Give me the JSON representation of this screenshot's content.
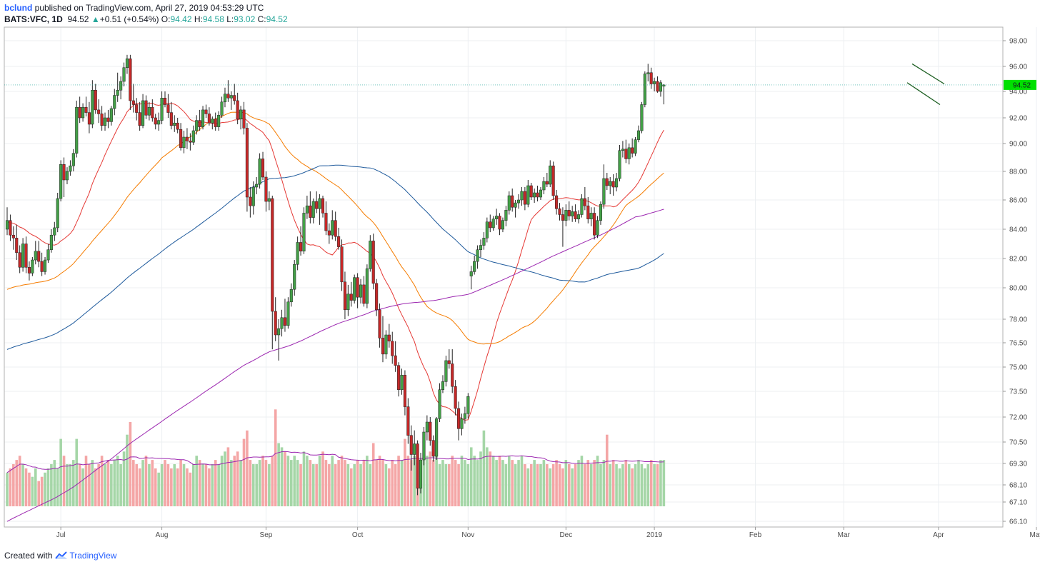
{
  "header": {
    "user": "bclund",
    "published": " published on TradingView.com, April 27, 2019 04:53:29 UTC",
    "symbol": "BATS:VFC, 1D",
    "last": "94.52",
    "change": "+0.51 (+0.54%)",
    "o_label": "O:",
    "o_value": "94.42",
    "h_label": "H:",
    "h_value": "94.58",
    "l_label": "L:",
    "l_value": "93.02",
    "c_label": "C:",
    "c_value": "94.52"
  },
  "footer": {
    "created_with": "Created with",
    "brand": "TradingView"
  },
  "colors": {
    "up": "#43a047",
    "down": "#c62828",
    "ma20": "#e53935",
    "ma50": "#f57c00",
    "ma100": "#1e5a9c",
    "ma200": "#9c27b0",
    "vol_up": "#a5d6a7",
    "vol_down": "#f4a6a6",
    "vol_ma": "#9c27b0",
    "flag": "#1b5e20",
    "last_tag": "#00e000"
  },
  "chart_data": {
    "type": "candlestick",
    "y_axis": {
      "ticks": [
        66.1,
        67.1,
        68.1,
        69.3,
        70.5,
        72.0,
        73.5,
        75.0,
        76.5,
        78.0,
        80.0,
        82.0,
        84.0,
        86.0,
        88.0,
        90.0,
        92.0,
        94.0,
        96.0,
        98.0
      ],
      "tick_labels": [
        "66.10",
        "67.10",
        "68.10",
        "69.30",
        "70.50",
        "72.00",
        "73.50",
        "75.00",
        "76.50",
        "78.00",
        "80.00",
        "82.00",
        "84.00",
        "86.00",
        "88.00",
        "90.00",
        "92.00",
        "94.00",
        "96.00",
        "98.00"
      ]
    },
    "x_axis": {
      "labels": [
        "Jul",
        "Aug",
        "Sep",
        "Oct",
        "Nov",
        "Dec",
        "2019",
        "Feb",
        "Mar",
        "Apr",
        "May"
      ],
      "label_bar_index": [
        17,
        49,
        82,
        111,
        146,
        177,
        205,
        237,
        265,
        295,
        326
      ]
    },
    "last_price": "94.52",
    "candles_ohlc": [
      [
        84.0,
        85.5,
        83.6,
        84.6
      ],
      [
        84.6,
        85.0,
        83.2,
        83.6
      ],
      [
        83.6,
        84.2,
        82.6,
        83.4
      ],
      [
        83.4,
        84.3,
        81.9,
        82.4
      ],
      [
        82.4,
        82.9,
        81.0,
        81.4
      ],
      [
        81.4,
        83.4,
        81.1,
        83.0
      ],
      [
        83.0,
        83.5,
        81.0,
        81.4
      ],
      [
        81.4,
        81.8,
        80.5,
        81.0
      ],
      [
        81.0,
        82.1,
        80.8,
        81.9
      ],
      [
        81.9,
        83.2,
        81.6,
        82.5
      ],
      [
        82.5,
        83.2,
        81.4,
        81.8
      ],
      [
        81.8,
        82.4,
        80.8,
        81.1
      ],
      [
        81.1,
        82.1,
        80.9,
        81.9
      ],
      [
        81.9,
        83.0,
        81.7,
        82.6
      ],
      [
        82.6,
        84.0,
        82.4,
        83.6
      ],
      [
        83.6,
        84.5,
        83.2,
        84.1
      ],
      [
        84.1,
        86.5,
        83.8,
        86.1
      ],
      [
        86.1,
        88.8,
        85.9,
        88.5
      ],
      [
        88.5,
        89.0,
        86.2,
        87.4
      ],
      [
        87.4,
        88.3,
        87.1,
        88.0
      ],
      [
        88.0,
        88.8,
        87.7,
        88.4
      ],
      [
        88.4,
        89.6,
        88.0,
        89.3
      ],
      [
        89.3,
        93.3,
        89.0,
        92.8
      ],
      [
        92.8,
        93.6,
        91.6,
        92.0
      ],
      [
        92.0,
        93.1,
        91.7,
        92.8
      ],
      [
        92.8,
        93.6,
        92.1,
        92.4
      ],
      [
        92.4,
        93.2,
        90.8,
        91.5
      ],
      [
        91.5,
        94.9,
        91.2,
        94.1
      ],
      [
        94.1,
        94.6,
        92.3,
        92.6
      ],
      [
        92.6,
        93.4,
        91.6,
        92.3
      ],
      [
        92.3,
        92.9,
        91.0,
        91.4
      ],
      [
        91.4,
        92.4,
        91.0,
        92.0
      ],
      [
        92.0,
        92.6,
        91.2,
        91.7
      ],
      [
        91.7,
        92.9,
        91.4,
        92.7
      ],
      [
        92.7,
        94.2,
        92.2,
        93.7
      ],
      [
        93.7,
        95.5,
        93.2,
        94.1
      ],
      [
        94.1,
        95.2,
        93.4,
        94.8
      ],
      [
        94.8,
        96.3,
        94.4,
        95.9
      ],
      [
        95.9,
        96.9,
        95.4,
        96.6
      ],
      [
        96.6,
        96.9,
        92.6,
        93.3
      ],
      [
        93.3,
        94.6,
        92.4,
        93.0
      ],
      [
        93.0,
        93.5,
        91.8,
        92.4
      ],
      [
        92.4,
        93.2,
        91.0,
        91.4
      ],
      [
        91.4,
        93.8,
        91.2,
        93.3
      ],
      [
        93.3,
        93.7,
        91.9,
        92.2
      ],
      [
        92.2,
        93.2,
        91.8,
        92.8
      ],
      [
        92.8,
        93.4,
        91.7,
        92.0
      ],
      [
        92.0,
        92.3,
        91.1,
        91.5
      ],
      [
        91.5,
        92.4,
        91.0,
        91.8
      ],
      [
        91.8,
        94.0,
        91.5,
        93.5
      ],
      [
        93.5,
        94.0,
        92.8,
        93.0
      ],
      [
        93.0,
        93.8,
        92.0,
        92.4
      ],
      [
        92.4,
        93.2,
        91.1,
        91.4
      ],
      [
        91.4,
        92.2,
        90.9,
        91.6
      ],
      [
        91.6,
        92.0,
        90.8,
        91.1
      ],
      [
        91.1,
        91.6,
        89.5,
        89.7
      ],
      [
        89.7,
        91.0,
        89.3,
        90.5
      ],
      [
        90.5,
        91.2,
        89.6,
        90.2
      ],
      [
        90.2,
        90.8,
        89.5,
        90.1
      ],
      [
        90.1,
        91.4,
        89.9,
        91.0
      ],
      [
        91.0,
        92.2,
        90.7,
        91.8
      ],
      [
        91.8,
        92.6,
        91.0,
        91.3
      ],
      [
        91.3,
        92.9,
        91.1,
        92.6
      ],
      [
        92.6,
        93.0,
        92.0,
        92.3
      ],
      [
        92.3,
        92.8,
        91.4,
        91.6
      ],
      [
        91.6,
        92.1,
        91.1,
        91.9
      ],
      [
        91.9,
        92.4,
        91.0,
        91.3
      ],
      [
        91.3,
        92.5,
        91.0,
        92.2
      ],
      [
        92.2,
        93.6,
        92.0,
        93.2
      ],
      [
        93.2,
        94.3,
        92.8,
        93.8
      ],
      [
        93.8,
        94.9,
        93.2,
        93.5
      ],
      [
        93.5,
        94.0,
        92.6,
        93.7
      ],
      [
        93.7,
        94.6,
        93.0,
        93.3
      ],
      [
        93.3,
        93.9,
        91.5,
        91.9
      ],
      [
        91.9,
        92.9,
        91.1,
        92.6
      ],
      [
        92.6,
        93.2,
        90.7,
        91.2
      ],
      [
        91.2,
        91.6,
        85.2,
        86.2
      ],
      [
        86.2,
        86.9,
        84.8,
        85.6
      ],
      [
        85.6,
        87.3,
        85.0,
        86.9
      ],
      [
        86.9,
        87.6,
        86.4,
        87.1
      ],
      [
        87.1,
        89.3,
        86.8,
        88.9
      ],
      [
        88.9,
        89.4,
        87.4,
        87.6
      ],
      [
        87.6,
        88.0,
        85.2,
        85.9
      ],
      [
        85.9,
        86.6,
        85.3,
        86.1
      ],
      [
        86.1,
        86.3,
        76.1,
        78.5
      ],
      [
        78.5,
        79.4,
        76.6,
        77.0
      ],
      [
        77.0,
        78.0,
        75.4,
        77.4
      ],
      [
        77.4,
        78.6,
        76.9,
        78.1
      ],
      [
        78.1,
        79.3,
        77.2,
        77.6
      ],
      [
        77.6,
        79.4,
        77.4,
        79.1
      ],
      [
        79.1,
        80.3,
        78.8,
        79.9
      ],
      [
        79.9,
        81.9,
        79.5,
        81.6
      ],
      [
        81.6,
        83.5,
        81.2,
        83.1
      ],
      [
        83.1,
        84.2,
        82.2,
        82.5
      ],
      [
        82.5,
        85.5,
        82.3,
        85.1
      ],
      [
        85.1,
        86.3,
        84.7,
        85.6
      ],
      [
        85.6,
        86.6,
        84.4,
        84.8
      ],
      [
        84.8,
        86.1,
        84.4,
        85.9
      ],
      [
        85.9,
        86.6,
        85.1,
        85.4
      ],
      [
        85.4,
        86.4,
        84.3,
        86.1
      ],
      [
        86.1,
        86.3,
        84.8,
        85.1
      ],
      [
        85.1,
        85.9,
        83.6,
        83.9
      ],
      [
        83.9,
        84.4,
        83.0,
        83.6
      ],
      [
        83.6,
        85.3,
        83.3,
        84.6
      ],
      [
        84.6,
        85.2,
        83.2,
        83.5
      ],
      [
        83.5,
        84.1,
        82.6,
        82.8
      ],
      [
        82.8,
        83.3,
        79.8,
        80.4
      ],
      [
        80.4,
        81.1,
        78.0,
        78.6
      ],
      [
        78.6,
        80.2,
        78.2,
        79.6
      ],
      [
        79.6,
        80.4,
        78.8,
        79.2
      ],
      [
        79.2,
        80.9,
        79.0,
        80.7
      ],
      [
        80.7,
        81.0,
        78.7,
        79.4
      ],
      [
        79.4,
        80.6,
        79.0,
        80.2
      ],
      [
        80.2,
        80.8,
        78.8,
        79.0
      ],
      [
        79.0,
        81.6,
        78.7,
        81.3
      ],
      [
        81.3,
        83.6,
        81.1,
        83.2
      ],
      [
        83.2,
        83.7,
        79.9,
        80.3
      ],
      [
        80.3,
        80.6,
        78.2,
        78.6
      ],
      [
        78.6,
        79.0,
        76.2,
        76.8
      ],
      [
        76.8,
        78.2,
        75.3,
        75.8
      ],
      [
        75.8,
        77.3,
        75.5,
        77.0
      ],
      [
        77.0,
        77.7,
        76.2,
        76.6
      ],
      [
        76.6,
        77.2,
        75.2,
        75.7
      ],
      [
        75.7,
        76.6,
        74.7,
        75.1
      ],
      [
        75.1,
        75.3,
        73.2,
        73.6
      ],
      [
        73.6,
        74.9,
        73.3,
        74.5
      ],
      [
        74.5,
        74.8,
        72.1,
        72.6
      ],
      [
        72.6,
        73.1,
        70.4,
        70.9
      ],
      [
        70.9,
        71.5,
        68.9,
        69.8
      ],
      [
        69.8,
        71.2,
        69.2,
        70.4
      ],
      [
        70.4,
        70.6,
        67.5,
        67.9
      ],
      [
        67.9,
        69.9,
        67.6,
        69.5
      ],
      [
        69.5,
        71.4,
        69.2,
        71.1
      ],
      [
        71.1,
        72.1,
        70.6,
        71.7
      ],
      [
        71.7,
        72.0,
        70.3,
        70.6
      ],
      [
        70.6,
        70.9,
        69.4,
        69.7
      ],
      [
        69.7,
        72.0,
        69.5,
        71.9
      ],
      [
        71.9,
        74.0,
        71.7,
        73.6
      ],
      [
        73.6,
        74.5,
        73.4,
        74.1
      ],
      [
        74.1,
        75.7,
        73.8,
        75.4
      ],
      [
        75.4,
        76.1,
        74.9,
        75.2
      ],
      [
        75.2,
        76.1,
        73.4,
        73.8
      ],
      [
        73.8,
        74.2,
        72.1,
        72.5
      ],
      [
        72.5,
        72.9,
        70.6,
        71.3
      ],
      [
        71.3,
        72.2,
        70.9,
        71.9
      ],
      [
        71.9,
        72.6,
        71.6,
        72.2
      ],
      [
        72.2,
        73.4,
        71.9,
        73.2
      ],
      [
        80.8,
        81.5,
        79.9,
        81.1
      ],
      [
        81.1,
        82.2,
        80.9,
        81.8
      ],
      [
        81.8,
        82.9,
        81.3,
        82.6
      ],
      [
        82.6,
        83.3,
        82.1,
        82.9
      ],
      [
        82.9,
        83.8,
        82.6,
        83.4
      ],
      [
        83.4,
        84.8,
        83.1,
        84.5
      ],
      [
        84.5,
        85.0,
        83.8,
        84.1
      ],
      [
        84.1,
        84.9,
        83.9,
        84.7
      ],
      [
        84.7,
        85.4,
        84.3,
        84.9
      ],
      [
        84.9,
        85.1,
        83.6,
        84.0
      ],
      [
        84.0,
        84.8,
        83.8,
        84.6
      ],
      [
        84.6,
        85.6,
        84.2,
        85.3
      ],
      [
        85.3,
        86.6,
        85.0,
        86.3
      ],
      [
        86.3,
        86.8,
        85.2,
        85.5
      ],
      [
        85.5,
        86.0,
        84.8,
        85.8
      ],
      [
        85.8,
        86.4,
        85.4,
        86.0
      ],
      [
        86.0,
        86.9,
        85.6,
        86.6
      ],
      [
        86.6,
        86.9,
        85.3,
        85.7
      ],
      [
        85.7,
        87.4,
        85.5,
        87.0
      ],
      [
        87.0,
        87.2,
        86.0,
        86.2
      ],
      [
        86.2,
        86.8,
        85.8,
        86.5
      ],
      [
        86.5,
        87.0,
        85.9,
        86.2
      ],
      [
        86.2,
        86.9,
        86.0,
        86.7
      ],
      [
        86.7,
        87.6,
        86.4,
        87.3
      ],
      [
        87.3,
        87.9,
        86.9,
        87.1
      ],
      [
        87.1,
        88.8,
        86.9,
        88.4
      ],
      [
        88.4,
        88.7,
        86.0,
        86.3
      ],
      [
        86.3,
        86.7,
        85.0,
        85.4
      ],
      [
        85.4,
        85.8,
        84.6,
        85.0
      ],
      [
        85.0,
        85.5,
        82.8,
        84.6
      ],
      [
        84.6,
        85.7,
        84.2,
        85.3
      ],
      [
        85.3,
        85.9,
        84.6,
        84.9
      ],
      [
        84.9,
        85.6,
        84.5,
        85.2
      ],
      [
        85.2,
        85.7,
        84.5,
        84.7
      ],
      [
        84.7,
        85.3,
        84.4,
        85.0
      ],
      [
        85.0,
        86.4,
        84.8,
        86.1
      ],
      [
        86.1,
        86.9,
        85.3,
        85.6
      ],
      [
        85.6,
        86.2,
        84.4,
        84.7
      ],
      [
        84.7,
        85.5,
        84.2,
        85.1
      ],
      [
        85.1,
        85.5,
        83.3,
        83.6
      ],
      [
        83.6,
        84.9,
        83.4,
        84.6
      ],
      [
        84.6,
        85.9,
        84.3,
        85.7
      ],
      [
        85.7,
        88.5,
        85.4,
        87.5
      ],
      [
        87.5,
        87.9,
        86.7,
        87.0
      ],
      [
        87.0,
        87.6,
        86.4,
        87.3
      ],
      [
        87.3,
        87.8,
        86.3,
        86.9
      ],
      [
        86.9,
        87.9,
        86.6,
        87.5
      ],
      [
        87.5,
        89.9,
        87.3,
        89.5
      ],
      [
        89.5,
        90.2,
        89.0,
        89.6
      ],
      [
        89.6,
        90.3,
        88.6,
        88.9
      ],
      [
        88.9,
        90.0,
        88.5,
        89.7
      ],
      [
        89.7,
        90.4,
        89.0,
        89.3
      ],
      [
        89.3,
        90.5,
        89.1,
        90.3
      ],
      [
        90.3,
        91.4,
        90.1,
        91.0
      ],
      [
        91.0,
        93.2,
        90.8,
        93.0
      ],
      [
        93.0,
        95.6,
        92.8,
        95.4
      ],
      [
        95.4,
        96.2,
        94.8,
        95.5
      ],
      [
        95.5,
        95.9,
        94.2,
        94.6
      ],
      [
        94.6,
        95.1,
        94.0,
        94.8
      ],
      [
        94.8,
        95.2,
        93.9,
        94.0
      ],
      [
        94.0,
        94.9,
        93.6,
        94.7
      ],
      [
        94.42,
        94.58,
        93.02,
        94.52
      ]
    ],
    "volume_relative": [
      0.4,
      0.45,
      0.5,
      0.55,
      0.6,
      0.5,
      0.45,
      0.4,
      0.35,
      0.45,
      0.3,
      0.35,
      0.4,
      0.45,
      0.5,
      0.55,
      0.45,
      0.8,
      0.6,
      0.5,
      0.5,
      0.55,
      0.8,
      0.5,
      0.45,
      0.6,
      0.5,
      0.55,
      0.45,
      0.5,
      0.6,
      0.5,
      0.55,
      0.5,
      0.55,
      0.6,
      0.5,
      0.65,
      0.85,
      1.0,
      0.55,
      0.5,
      0.45,
      0.55,
      0.6,
      0.5,
      0.55,
      0.45,
      0.4,
      0.5,
      0.55,
      0.5,
      0.45,
      0.5,
      0.45,
      0.55,
      0.5,
      0.45,
      0.4,
      0.5,
      0.6,
      0.55,
      0.5,
      0.5,
      0.45,
      0.5,
      0.55,
      0.5,
      0.6,
      0.65,
      0.7,
      0.55,
      0.6,
      0.65,
      0.55,
      0.8,
      0.9,
      0.55,
      0.5,
      0.5,
      0.55,
      0.6,
      0.55,
      0.5,
      0.6,
      1.15,
      0.75,
      0.7,
      0.65,
      0.6,
      0.55,
      0.6,
      0.55,
      0.5,
      0.65,
      0.6,
      0.55,
      0.5,
      0.5,
      0.6,
      0.65,
      0.55,
      0.5,
      0.6,
      0.5,
      0.55,
      0.6,
      0.55,
      0.5,
      0.45,
      0.5,
      0.55,
      0.5,
      0.55,
      0.6,
      0.5,
      0.75,
      0.55,
      0.6,
      0.55,
      0.5,
      0.45,
      0.55,
      0.5,
      0.6,
      0.55,
      0.8,
      0.6,
      0.55,
      0.6,
      0.55,
      0.5,
      0.55,
      0.6,
      0.65,
      0.55,
      0.6,
      0.5,
      0.55,
      0.5,
      0.5,
      0.6,
      0.55,
      0.5,
      0.6,
      0.55,
      0.5,
      0.7,
      0.6,
      0.55,
      0.65,
      0.9,
      0.7,
      0.65,
      0.6,
      0.55,
      0.6,
      0.55,
      0.5,
      0.6,
      0.55,
      0.5,
      0.55,
      0.6,
      0.5,
      0.45,
      0.5,
      0.55,
      0.5,
      0.5,
      0.55,
      0.5,
      0.45,
      0.5,
      0.55,
      0.5,
      0.45,
      0.55,
      0.5,
      0.45,
      0.5,
      0.55,
      0.6,
      0.5,
      0.55,
      0.5,
      0.55,
      0.6,
      0.5,
      0.55,
      0.85,
      0.5,
      0.55,
      0.5,
      0.45,
      0.5,
      0.55,
      0.5,
      0.45,
      0.5,
      0.55,
      0.5,
      0.45,
      0.5,
      0.55,
      0.5,
      0.5,
      0.55,
      0.55,
      0.6,
      1.0,
      0.95,
      0.6,
      0.55,
      0.5,
      0.45,
      0.4
    ]
  }
}
